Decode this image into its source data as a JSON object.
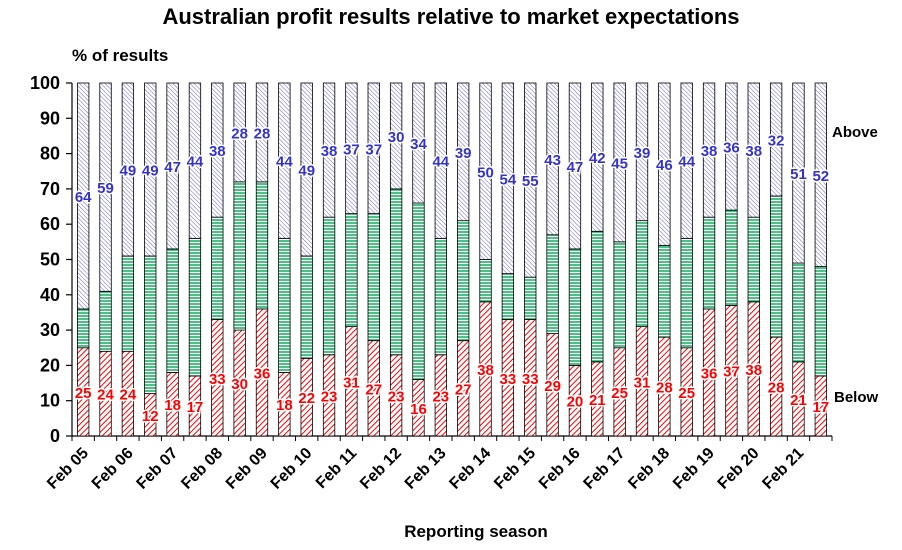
{
  "chart_data": {
    "type": "bar",
    "stacked": true,
    "title": "Australian profit results relative to market expectations",
    "ylabel": "% of results",
    "xlabel": "Reporting season",
    "ylim": [
      0,
      100
    ],
    "yticks": [
      "0",
      "10",
      "20",
      "30",
      "40",
      "50",
      "60",
      "70",
      "80",
      "90",
      "100"
    ],
    "x_tick_labels": [
      "Feb 05",
      "Feb 06",
      "Feb 07",
      "Feb 08",
      "Feb 09",
      "Feb 10",
      "Feb 11",
      "Feb 12",
      "Feb 13",
      "Feb 14",
      "Feb 15",
      "Feb 16",
      "Feb 17",
      "Feb 18",
      "Feb 19",
      "Feb 20",
      "Feb 21"
    ],
    "series_labels": {
      "above": "Above",
      "below": "Below"
    },
    "below": [
      25,
      24,
      24,
      12,
      18,
      17,
      33,
      30,
      36,
      18,
      22,
      23,
      31,
      27,
      23,
      16,
      23,
      27,
      38,
      33,
      33,
      29,
      20,
      21,
      25,
      31,
      28,
      25,
      36,
      37,
      38,
      28,
      21,
      17
    ],
    "above": [
      64,
      59,
      49,
      49,
      47,
      44,
      38,
      28,
      28,
      44,
      49,
      38,
      37,
      37,
      30,
      34,
      44,
      39,
      50,
      54,
      55,
      43,
      47,
      42,
      45,
      39,
      46,
      44,
      38,
      36,
      38,
      32,
      51,
      52
    ],
    "colors": {
      "below": "#ff0000",
      "middle": "#00a651",
      "above": "#3333cc",
      "axis": "#000000"
    },
    "grid": false,
    "hatching": true
  }
}
